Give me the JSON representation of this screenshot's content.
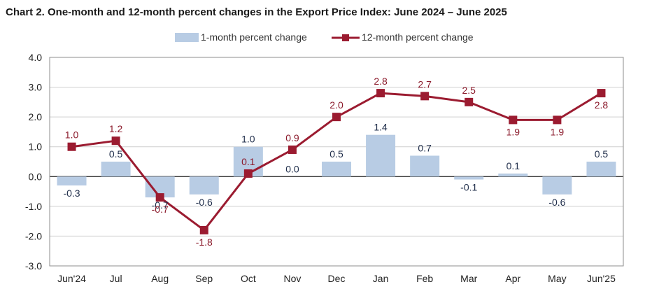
{
  "title": "Chart 2. One-month and 12-month percent changes in the Export Price Index: June 2024 – June 2025",
  "chart_data": {
    "type": "bar",
    "categories": [
      "Jun'24",
      "Jul",
      "Aug",
      "Sep",
      "Oct",
      "Nov",
      "Dec",
      "Jan",
      "Feb",
      "Mar",
      "Apr",
      "May",
      "Jun'25"
    ],
    "series": [
      {
        "name": "1-month percent change",
        "type": "bar",
        "values": [
          -0.3,
          0.5,
          -0.7,
          -0.6,
          1.0,
          0.0,
          0.5,
          1.4,
          0.7,
          -0.1,
          0.1,
          -0.6,
          0.5
        ],
        "labels": [
          "-0.3",
          "0.5",
          "-0.7",
          "-0.6",
          "1.0",
          "0.0",
          "0.5",
          "1.4",
          "0.7",
          "-0.1",
          "0.1",
          "-0.6",
          "0.5"
        ]
      },
      {
        "name": "12-month percent change",
        "type": "line",
        "values": [
          1.0,
          1.2,
          -0.7,
          -1.8,
          0.1,
          0.9,
          2.0,
          2.8,
          2.7,
          2.5,
          1.9,
          1.9,
          2.8
        ],
        "labels": [
          "1.0",
          "1.2",
          "-0.7",
          "-1.8",
          "0.1",
          "0.9",
          "2.0",
          "2.8",
          "2.7",
          "2.5",
          "1.9",
          "1.9",
          "2.8"
        ]
      }
    ],
    "ylim": [
      -3.0,
      4.0
    ],
    "yticks": [
      "4.0",
      "3.0",
      "2.0",
      "1.0",
      "0.0",
      "-1.0",
      "-2.0",
      "-3.0"
    ],
    "grid": true,
    "legend": "top-center",
    "colors": {
      "bar": "#b8cce4",
      "line": "#9b1b30",
      "line_label": "#8b1a2b"
    }
  }
}
